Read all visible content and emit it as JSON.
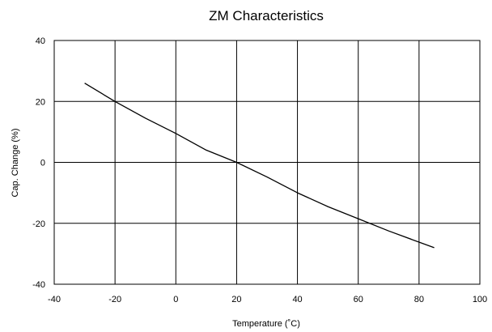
{
  "chart_data": {
    "type": "line",
    "title": "ZM Characteristics",
    "xlabel": "Temperature (˚C)",
    "ylabel": "Cap. Change (%)",
    "xlim": [
      -40,
      100
    ],
    "ylim": [
      -40,
      40
    ],
    "xticks": [
      -40,
      -20,
      0,
      20,
      40,
      60,
      80,
      100
    ],
    "yticks": [
      -40,
      -20,
      0,
      20,
      40
    ],
    "xtick_labels": [
      "-40",
      "-20",
      "0",
      "20",
      "40",
      "60",
      "80",
      "100"
    ],
    "ytick_labels": [
      "-40",
      "-20",
      "0",
      "20",
      "40"
    ],
    "grid": true,
    "legend": "none",
    "series": [
      {
        "color": "#000000",
        "x": [
          -30,
          -20,
          -10,
          0,
          10,
          20,
          30,
          40,
          50,
          60,
          70,
          85
        ],
        "y": [
          26,
          20,
          14.5,
          9.5,
          4,
          0,
          -4.8,
          -10,
          -14.5,
          -18.5,
          -22.5,
          -28
        ]
      }
    ]
  }
}
